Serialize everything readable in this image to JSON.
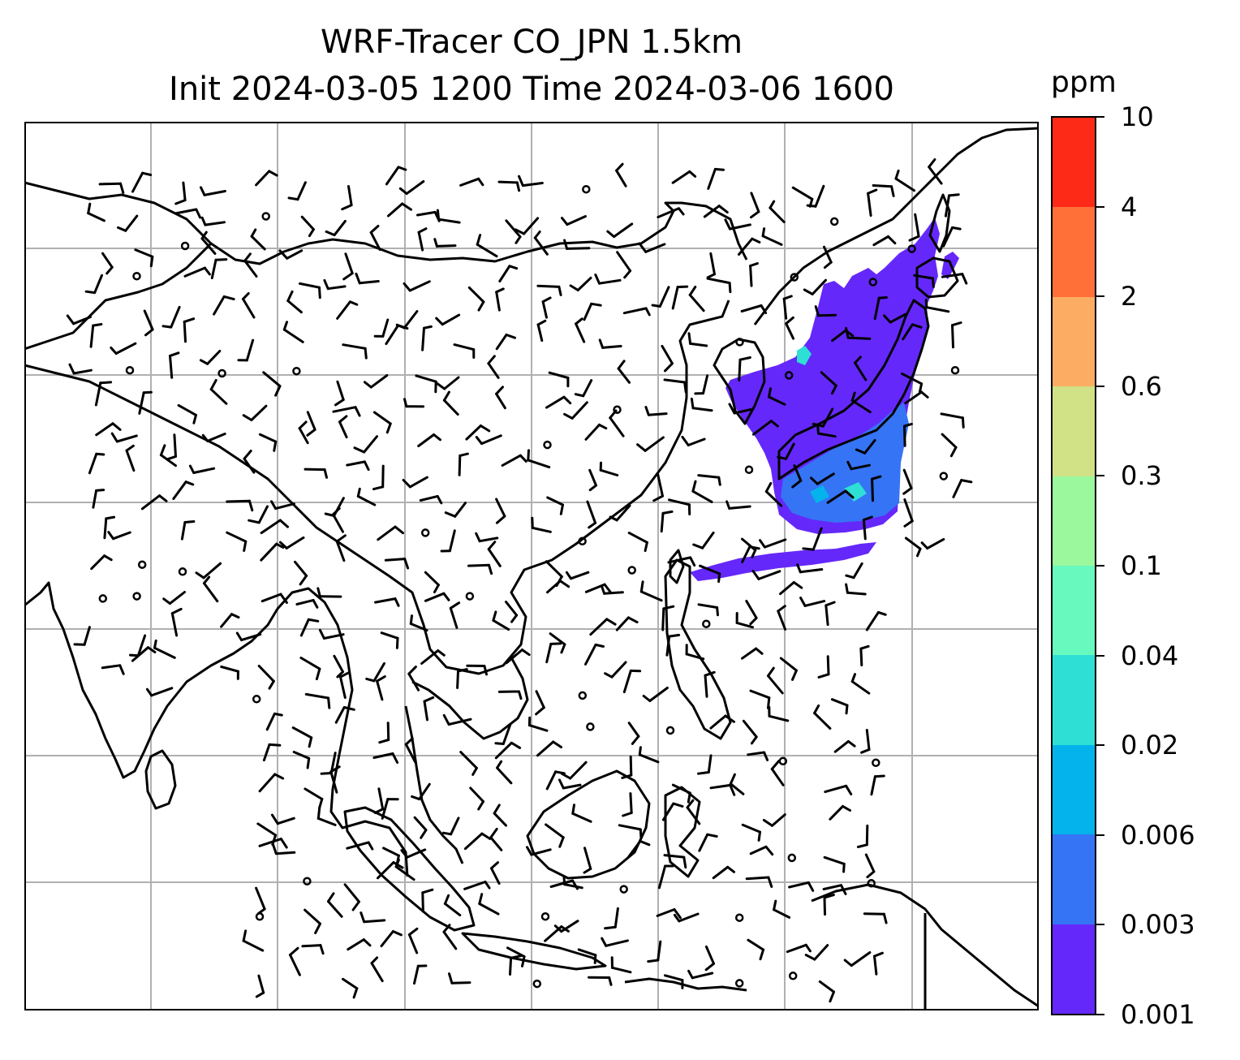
{
  "title": {
    "line1": "WRF-Tracer CO_JPN 1.5km",
    "line2": "Init 2024-03-05 1200 Time 2024-03-06 1600"
  },
  "colorbar": {
    "units": "ppm",
    "levels": [
      "0.001",
      "0.003",
      "0.006",
      "0.02",
      "0.04",
      "0.1",
      "0.3",
      "0.6",
      "2",
      "4",
      "10"
    ],
    "colors": [
      "#6528FA",
      "#3574F4",
      "#04B3EB",
      "#2EDFD5",
      "#68F9BE",
      "#9BF89C",
      "#D0E186",
      "#FDAD63",
      "#FE7038",
      "#FE2A18"
    ]
  },
  "map": {
    "gridline_color": "#b0b0b0",
    "coastline_color": "#000000",
    "plume_colors": {
      "low": "#6528FA",
      "mid": "#3574F4",
      "high": "#2EDFD5"
    }
  }
}
